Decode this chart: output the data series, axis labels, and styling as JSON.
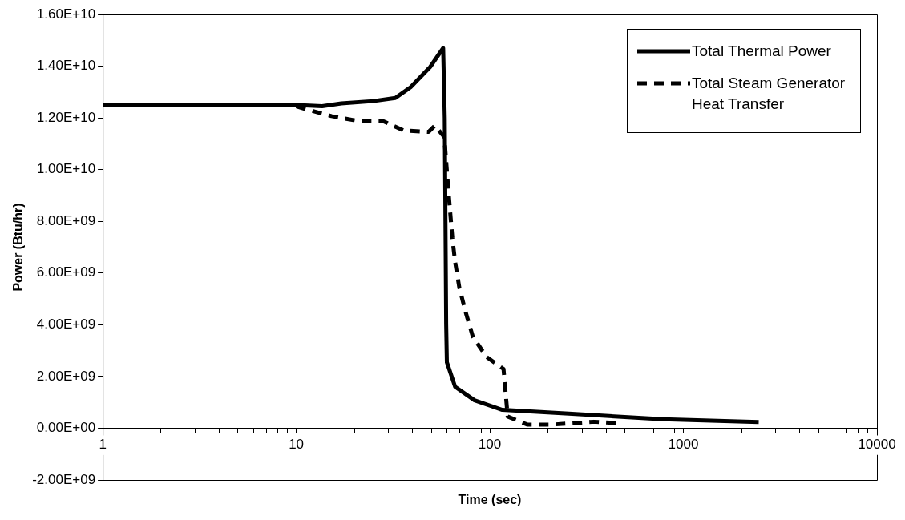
{
  "chart_data": {
    "type": "line",
    "xlabel": "Time (sec)",
    "ylabel": "Power (Btu/hr)",
    "log": "x",
    "grid": false,
    "legend": "top right",
    "marker": "none",
    "xlim": [
      1,
      10000
    ],
    "xticks": [
      1,
      {
        "value": 2,
        "label": null
      },
      {
        "value": 3,
        "label": null
      },
      {
        "value": 4,
        "label": null
      },
      {
        "value": 5,
        "label": null
      },
      {
        "value": 6,
        "label": null
      },
      {
        "value": 7,
        "label": null
      },
      {
        "value": 8,
        "label": null
      },
      {
        "value": 9,
        "label": null
      },
      10,
      {
        "value": 20,
        "label": null
      },
      {
        "value": 30,
        "label": null
      },
      {
        "value": 40,
        "label": null
      },
      {
        "value": 50,
        "label": null
      },
      {
        "value": 60,
        "label": null
      },
      {
        "value": 70,
        "label": null
      },
      {
        "value": 80,
        "label": null
      },
      {
        "value": 90,
        "label": null
      },
      100,
      {
        "value": 200,
        "label": null
      },
      {
        "value": 300,
        "label": null
      },
      {
        "value": 400,
        "label": null
      },
      {
        "value": 500,
        "label": null
      },
      {
        "value": 600,
        "label": null
      },
      {
        "value": 700,
        "label": null
      },
      {
        "value": 800,
        "label": null
      },
      {
        "value": 900,
        "label": null
      },
      1000,
      {
        "value": 2000,
        "label": null
      },
      {
        "value": 3000,
        "label": null
      },
      {
        "value": 4000,
        "label": null
      },
      {
        "value": 5000,
        "label": null
      },
      {
        "value": 6000,
        "label": null
      },
      {
        "value": 7000,
        "label": null
      },
      {
        "value": 8000,
        "label": null
      },
      {
        "value": 9000,
        "label": null
      },
      10000
    ],
    "ylim": [
      -2000000000,
      16000000000
    ],
    "yticks": [
      {
        "value": -2000000000,
        "label": "-2.00E+09"
      },
      {
        "value": 0,
        "label": "0.00E+00"
      },
      {
        "value": 2000000000,
        "label": "2.00E+09"
      },
      {
        "value": 4000000000,
        "label": "4.00E+09"
      },
      {
        "value": 6000000000,
        "label": "6.00E+09"
      },
      {
        "value": 8000000000,
        "label": "8.00E+09"
      },
      {
        "value": 10000000000,
        "label": "1.00E+10"
      },
      {
        "value": 12000000000,
        "label": "1.20E+10"
      },
      {
        "value": 14000000000,
        "label": "1.40E+10"
      },
      {
        "value": 16000000000,
        "label": "1.60E+10"
      }
    ],
    "series": [
      {
        "name": "Total Thermal Power",
        "color": "#000000",
        "line_style": "solid",
        "x": [
          1,
          5,
          10,
          13.6,
          17.1,
          25,
          32.5,
          39,
          49.2,
          57.4,
          58.5,
          59,
          59.5,
          60,
          66.2,
          83.4,
          116,
          256,
          785,
          2450
        ],
        "values": [
          12500000000,
          12500000000,
          12500000000,
          12450000000,
          12560000000,
          12650000000,
          12770000000,
          13190000000,
          13970000000,
          14700000000,
          12000000000,
          8000000000,
          4000000000,
          2550000000,
          1600000000,
          1080000000,
          710000000,
          560000000,
          350000000,
          240000000
        ]
      },
      {
        "name": "Total Steam Generator Heat Transfer",
        "color": "#000000",
        "line_style": "dashed",
        "x": [
          10,
          11.3,
          15.2,
          20.9,
          28,
          35.9,
          48.3,
          52,
          58.2,
          61,
          64,
          66.2,
          69.6,
          75,
          81.7,
          96,
          117.7,
          123.7,
          156,
          210,
          345,
          450
        ],
        "values": [
          12450000000,
          12330000000,
          12070000000,
          11880000000,
          11880000000,
          11510000000,
          11460000000,
          11700000000,
          11260000000,
          9250000000,
          7370000000,
          6420000000,
          5430000000,
          4490000000,
          3540000000,
          2760000000,
          2290000000,
          450000000,
          140000000,
          140000000,
          250000000,
          200000000
        ]
      }
    ]
  }
}
